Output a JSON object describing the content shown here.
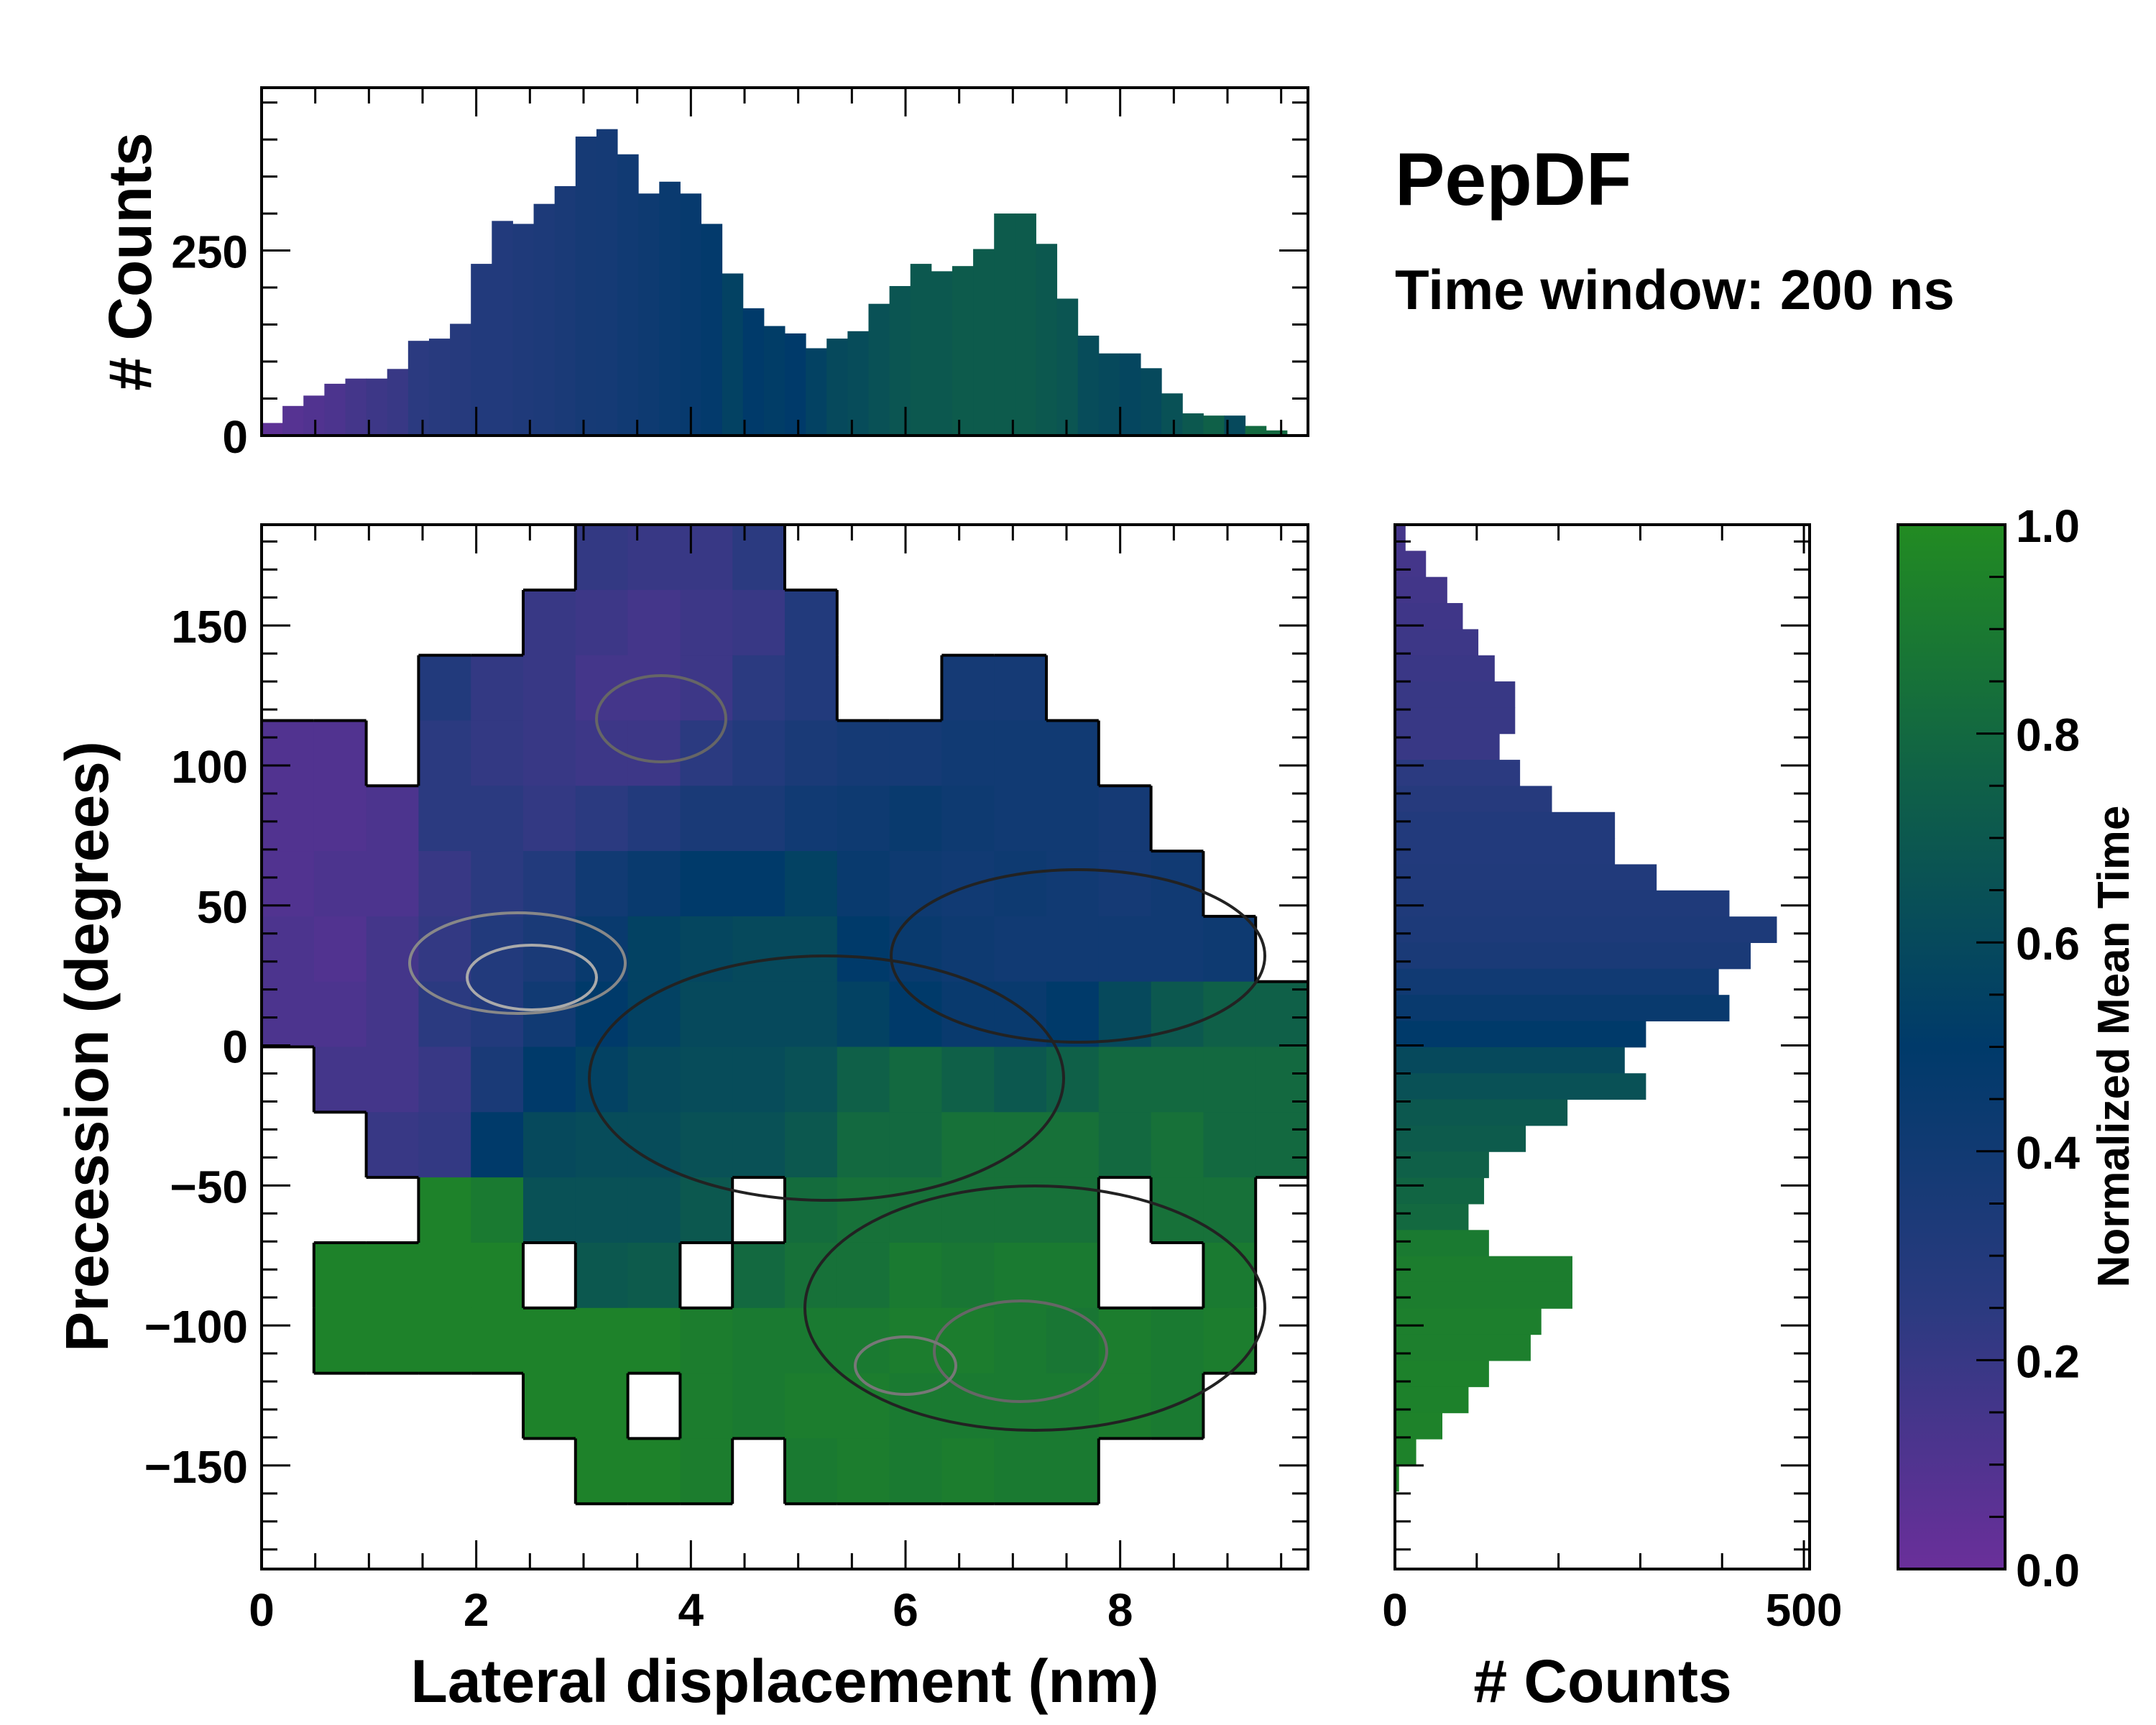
{
  "title": "PepDF",
  "subtitle": "Time window: 200 ns",
  "colormap": {
    "stops": [
      0,
      0.25,
      0.5,
      0.75,
      1.0
    ],
    "colors": [
      "#6a2f9a",
      "#2b3a80",
      "#003a6a",
      "#0f6048",
      "#228b22"
    ]
  },
  "chart_data": [
    {
      "name": "top-histogram",
      "type": "bar",
      "xlabel": "",
      "ylabel": "# Counts",
      "xlim": [
        0,
        9.75
      ],
      "ylim": [
        0,
        470
      ],
      "yticks": [
        0,
        250
      ],
      "bin_width": 0.195,
      "bin_start": 0,
      "values": [
        17,
        40,
        54,
        70,
        77,
        77,
        90,
        128,
        131,
        151,
        232,
        290,
        286,
        313,
        337,
        404,
        414,
        380,
        327,
        343,
        327,
        286,
        219,
        172,
        148,
        138,
        118,
        131,
        141,
        178,
        202,
        232,
        222,
        229,
        252,
        300,
        300,
        259,
        185,
        135,
        111,
        111,
        91,
        57,
        30,
        27,
        27,
        13,
        7,
        2
      ],
      "bar_color_values": [
        0.05,
        0.08,
        0.1,
        0.12,
        0.15,
        0.18,
        0.2,
        0.25,
        0.27,
        0.28,
        0.3,
        0.3,
        0.32,
        0.33,
        0.35,
        0.37,
        0.38,
        0.4,
        0.42,
        0.44,
        0.46,
        0.48,
        0.55,
        0.5,
        0.52,
        0.5,
        0.55,
        0.6,
        0.62,
        0.65,
        0.68,
        0.7,
        0.7,
        0.72,
        0.72,
        0.72,
        0.72,
        0.7,
        0.68,
        0.62,
        0.6,
        0.58,
        0.6,
        0.65,
        0.7,
        0.75,
        0.6,
        0.8,
        0.8,
        0.8
      ]
    },
    {
      "name": "main-heatmap",
      "type": "heatmap",
      "xlabel": "Lateral displacement (nm)",
      "ylabel": "Precession (degrees)",
      "xlim": [
        0,
        9.75
      ],
      "ylim": [
        -187,
        186
      ],
      "xticks": [
        0,
        2,
        4,
        6,
        8
      ],
      "yticks": [
        150,
        100,
        50,
        0,
        -50,
        -100,
        -150
      ],
      "ytick_labels": [
        "150",
        "100",
        "50",
        "0",
        "−50",
        "−100",
        "−150"
      ],
      "grid_rows_top_to_bottom": [
        [
          null,
          null,
          null,
          null,
          null,
          null,
          0.22,
          0.2,
          0.2,
          0.25,
          null,
          null,
          null,
          null,
          null,
          null,
          null,
          null,
          null,
          null
        ],
        [
          null,
          null,
          null,
          null,
          null,
          0.2,
          0.18,
          0.15,
          0.18,
          0.2,
          0.3,
          null,
          null,
          null,
          null,
          null,
          null,
          null,
          null,
          null
        ],
        [
          null,
          null,
          null,
          0.3,
          0.22,
          0.2,
          0.15,
          0.15,
          0.18,
          0.25,
          0.3,
          null,
          null,
          0.38,
          0.38,
          null,
          null,
          null,
          null,
          null
        ],
        [
          0.1,
          0.1,
          null,
          0.25,
          0.22,
          0.2,
          0.18,
          0.18,
          0.25,
          0.3,
          0.35,
          0.38,
          0.38,
          0.4,
          0.4,
          0.4,
          null,
          null,
          null,
          null
        ],
        [
          0.1,
          0.1,
          0.12,
          0.25,
          0.25,
          0.22,
          0.25,
          0.3,
          0.35,
          0.35,
          0.4,
          0.42,
          0.45,
          0.42,
          0.4,
          0.4,
          0.38,
          null,
          null,
          null
        ],
        [
          0.1,
          0.12,
          0.12,
          0.2,
          0.25,
          0.3,
          0.4,
          0.45,
          0.5,
          0.5,
          0.55,
          0.45,
          0.42,
          0.4,
          0.42,
          0.4,
          0.38,
          0.4,
          null,
          null
        ],
        [
          0.12,
          0.1,
          0.15,
          0.22,
          0.3,
          0.35,
          0.45,
          0.55,
          0.58,
          0.6,
          0.6,
          0.5,
          0.45,
          0.42,
          0.4,
          0.4,
          0.4,
          0.4,
          0.42,
          null
        ],
        [
          0.12,
          0.12,
          0.15,
          0.25,
          0.3,
          0.4,
          0.5,
          0.55,
          0.6,
          0.6,
          0.6,
          0.55,
          0.5,
          0.45,
          0.45,
          0.5,
          0.6,
          0.7,
          0.75,
          0.75
        ],
        [
          null,
          0.15,
          0.15,
          0.2,
          0.35,
          0.5,
          0.55,
          0.6,
          0.62,
          0.62,
          0.65,
          0.75,
          0.8,
          0.75,
          0.7,
          0.75,
          0.8,
          0.8,
          0.8,
          0.8
        ],
        [
          null,
          null,
          0.2,
          0.22,
          0.5,
          0.6,
          0.62,
          0.62,
          0.65,
          0.65,
          0.7,
          0.8,
          0.8,
          0.85,
          0.85,
          0.85,
          0.8,
          0.85,
          0.8,
          0.8
        ],
        [
          null,
          null,
          null,
          0.95,
          0.9,
          0.65,
          0.65,
          0.65,
          0.7,
          null,
          0.82,
          0.85,
          0.85,
          0.85,
          0.85,
          0.85,
          null,
          0.85,
          0.85,
          null
        ],
        [
          null,
          0.95,
          0.95,
          0.95,
          0.95,
          null,
          0.7,
          0.72,
          null,
          0.8,
          0.85,
          0.85,
          0.9,
          0.88,
          0.9,
          0.9,
          null,
          null,
          0.9,
          null
        ],
        [
          null,
          0.95,
          0.95,
          0.95,
          0.95,
          0.95,
          0.95,
          0.95,
          0.92,
          0.9,
          0.9,
          0.9,
          0.92,
          0.92,
          0.9,
          0.88,
          0.92,
          0.9,
          0.92,
          null
        ],
        [
          null,
          null,
          null,
          null,
          null,
          0.95,
          0.95,
          null,
          0.92,
          0.9,
          0.92,
          0.92,
          0.9,
          0.9,
          0.9,
          0.9,
          0.92,
          0.9,
          null,
          null
        ],
        [
          null,
          null,
          null,
          null,
          null,
          null,
          0.95,
          0.95,
          0.92,
          null,
          0.9,
          0.92,
          0.9,
          0.92,
          0.9,
          0.9,
          null,
          null,
          null,
          null
        ],
        [
          null,
          null,
          null,
          null,
          null,
          null,
          null,
          null,
          null,
          null,
          null,
          null,
          null,
          null,
          null,
          null,
          null,
          null,
          null,
          null
        ]
      ]
    },
    {
      "name": "right-histogram",
      "type": "bar",
      "orientation": "horizontal",
      "xlabel": "# Counts",
      "xlim": [
        0,
        507
      ],
      "xticks": [
        0,
        500
      ],
      "ylim": [
        -187,
        186
      ],
      "bin_height": 9.33,
      "bin_start_top": 186,
      "values": [
        13,
        38,
        64,
        83,
        102,
        122,
        147,
        147,
        128,
        153,
        192,
        269,
        269,
        320,
        409,
        467,
        435,
        396,
        409,
        307,
        281,
        307,
        211,
        160,
        115,
        109,
        90,
        115,
        217,
        217,
        179,
        166,
        115,
        90,
        58,
        26,
        5,
        0,
        0,
        0
      ],
      "bar_color_values": [
        0.15,
        0.15,
        0.16,
        0.17,
        0.18,
        0.19,
        0.2,
        0.2,
        0.2,
        0.25,
        0.28,
        0.3,
        0.3,
        0.31,
        0.32,
        0.33,
        0.35,
        0.4,
        0.45,
        0.5,
        0.6,
        0.65,
        0.7,
        0.72,
        0.75,
        0.78,
        0.8,
        0.9,
        0.92,
        0.92,
        0.93,
        0.93,
        0.94,
        0.94,
        0.95,
        0.95,
        0.95,
        0.95,
        0.95,
        0.95
      ]
    },
    {
      "name": "colorbar",
      "type": "colorbar",
      "label": "Normalized Mean Time",
      "range": [
        0,
        1
      ],
      "ticks": [
        0.0,
        0.2,
        0.4,
        0.6,
        0.8,
        1.0
      ],
      "tick_labels": [
        "0.0",
        "0.2",
        "0.4",
        "0.6",
        "0.8",
        "1.0"
      ]
    }
  ]
}
